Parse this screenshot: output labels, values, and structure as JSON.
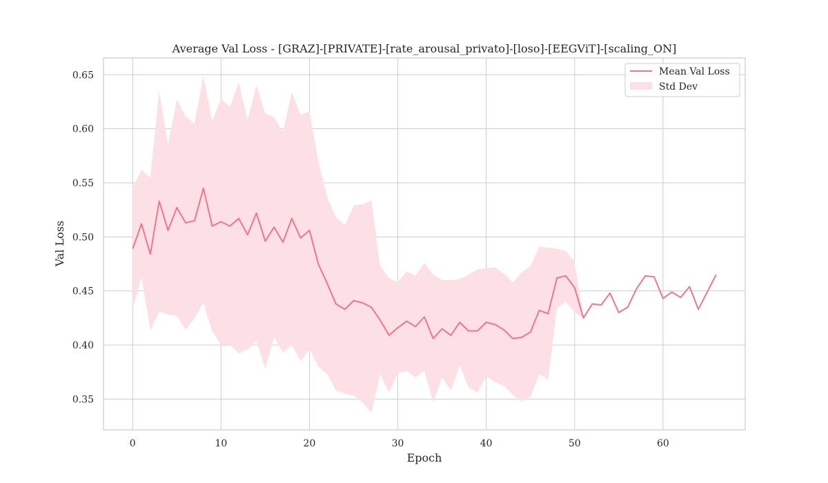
{
  "chart_data": {
    "type": "line",
    "title": "Average Val Loss - [GRAZ]-[PRIVATE]-[rate_arousal_privato]-[loso]-[EEGViT]-[scaling_ON]",
    "xlabel": "Epoch",
    "ylabel": "Val Loss",
    "xlim": [
      -3.3,
      69.3
    ],
    "ylim": [
      0.3215,
      0.6655
    ],
    "xticks": [
      0,
      10,
      20,
      30,
      40,
      50,
      60
    ],
    "yticks": [
      0.35,
      0.4,
      0.45,
      0.5,
      0.55,
      0.6,
      0.65
    ],
    "xtick_labels": [
      "0",
      "10",
      "20",
      "30",
      "40",
      "50",
      "60"
    ],
    "ytick_labels": [
      "0.35",
      "0.40",
      "0.45",
      "0.50",
      "0.55",
      "0.60",
      "0.65"
    ],
    "grid": true,
    "legend_position": "top-right",
    "line_color": "#f0758a",
    "band_color": "#fde0e5",
    "series": [
      {
        "name": "Mean Val Loss",
        "x": [
          0,
          1,
          2,
          3,
          4,
          5,
          6,
          7,
          8,
          9,
          10,
          11,
          12,
          13,
          14,
          15,
          16,
          17,
          18,
          19,
          20,
          21,
          22,
          23,
          24,
          25,
          26,
          27,
          28,
          29,
          30,
          31,
          32,
          33,
          34,
          35,
          36,
          37,
          38,
          39,
          40,
          41,
          42,
          43,
          44,
          45,
          46,
          47,
          48,
          49,
          50,
          51,
          52,
          53,
          54,
          55,
          56,
          57,
          58,
          59,
          60,
          61,
          62,
          63,
          64,
          65,
          66
        ],
        "values": [
          0.489,
          0.512,
          0.484,
          0.533,
          0.506,
          0.527,
          0.513,
          0.515,
          0.545,
          0.51,
          0.514,
          0.51,
          0.517,
          0.502,
          0.522,
          0.496,
          0.509,
          0.495,
          0.517,
          0.499,
          0.506,
          0.475,
          0.457,
          0.438,
          0.433,
          0.441,
          0.439,
          0.435,
          0.423,
          0.409,
          0.416,
          0.422,
          0.417,
          0.426,
          0.406,
          0.415,
          0.409,
          0.421,
          0.413,
          0.413,
          0.421,
          0.419,
          0.414,
          0.406,
          0.407,
          0.412,
          0.432,
          0.429,
          0.462,
          0.464,
          0.453,
          0.425,
          0.438,
          0.437,
          0.448,
          0.43,
          0.435,
          0.452,
          0.464,
          0.463,
          0.443,
          0.449,
          0.444,
          0.454,
          0.433,
          0.449,
          0.465
        ]
      },
      {
        "name": "Std Dev",
        "upper": [
          0.545,
          0.562,
          0.555,
          0.635,
          0.585,
          0.627,
          0.611,
          0.605,
          0.649,
          0.607,
          0.628,
          0.62,
          0.643,
          0.608,
          0.64,
          0.614,
          0.611,
          0.597,
          0.634,
          0.613,
          0.616,
          0.57,
          0.537,
          0.518,
          0.511,
          0.529,
          0.53,
          0.534,
          0.473,
          0.462,
          0.458,
          0.468,
          0.464,
          0.476,
          0.465,
          0.46,
          0.46,
          0.461,
          0.465,
          0.47,
          0.471,
          0.472,
          0.466,
          0.458,
          0.467,
          0.473,
          0.491,
          0.49,
          0.489,
          0.487,
          0.477,
          0.425,
          0.438,
          0.437,
          0.448,
          0.43,
          0.435,
          0.452,
          0.464,
          0.463,
          0.443,
          0.449,
          0.444,
          0.454,
          0.433,
          0.449,
          0.465
        ],
        "lower": [
          0.433,
          0.463,
          0.413,
          0.431,
          0.428,
          0.427,
          0.414,
          0.425,
          0.439,
          0.413,
          0.4,
          0.401,
          0.392,
          0.396,
          0.404,
          0.378,
          0.407,
          0.393,
          0.4,
          0.385,
          0.396,
          0.38,
          0.373,
          0.358,
          0.355,
          0.353,
          0.347,
          0.337,
          0.373,
          0.356,
          0.374,
          0.376,
          0.37,
          0.376,
          0.347,
          0.37,
          0.358,
          0.381,
          0.361,
          0.356,
          0.371,
          0.366,
          0.362,
          0.354,
          0.348,
          0.352,
          0.373,
          0.368,
          0.434,
          0.44,
          0.43,
          0.425,
          0.438,
          0.437,
          0.448,
          0.43,
          0.435,
          0.452,
          0.464,
          0.463,
          0.443,
          0.449,
          0.444,
          0.454,
          0.433,
          0.449,
          0.465
        ]
      }
    ]
  }
}
